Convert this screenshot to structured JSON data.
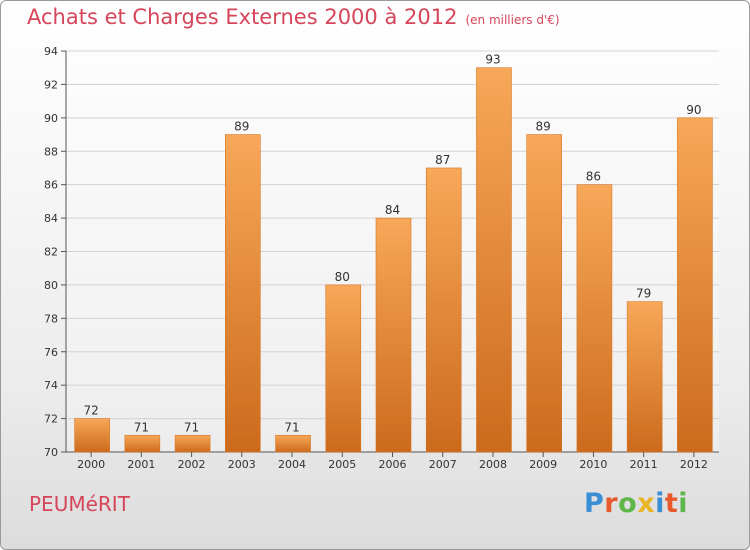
{
  "header": {
    "title": "Achats et Charges Externes 2000 à 2012",
    "subtitle": "(en milliers d'€)"
  },
  "footer": {
    "commune": "PEUMéRIT",
    "logo": {
      "text": "Proxiti",
      "letters": [
        {
          "char": "P",
          "color": "#3a8fd4"
        },
        {
          "char": "r",
          "color": "#e85a2b"
        },
        {
          "char": "o",
          "color": "#5fb64a"
        },
        {
          "char": "x",
          "color": "#e8b526"
        },
        {
          "char": "i",
          "color": "#3a8fd4"
        },
        {
          "char": "t",
          "color": "#e85a2b"
        },
        {
          "char": "i",
          "color": "#5fb64a"
        }
      ]
    }
  },
  "chart_data": {
    "type": "bar",
    "title": "Achats et Charges Externes 2000 à 2012",
    "subtitle": "(en milliers d'€)",
    "categories": [
      "2000",
      "2001",
      "2002",
      "2003",
      "2004",
      "2005",
      "2006",
      "2007",
      "2008",
      "2009",
      "2010",
      "2011",
      "2012"
    ],
    "values": [
      72,
      71,
      71,
      89,
      71,
      80,
      84,
      87,
      93,
      89,
      86,
      79,
      90
    ],
    "ylim": [
      70,
      94
    ],
    "yticks": [
      70,
      72,
      74,
      76,
      78,
      80,
      82,
      84,
      86,
      88,
      90,
      92,
      94
    ],
    "grid": true,
    "bar_color": "#e8883a",
    "colors": {
      "title": "#d6455a",
      "bar_light": "#f7a858",
      "bar_dark": "#cc6a1c",
      "label": "#333333"
    }
  }
}
